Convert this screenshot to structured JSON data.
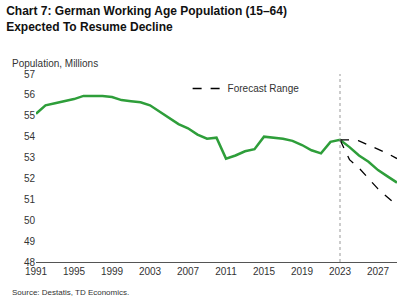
{
  "chart_data": {
    "type": "line",
    "title": "Chart 7: German Working Age Population (15–64)\nExpected To Resume Decline",
    "y_label": "Population, Millions",
    "source": "Source: Destatis, TD Economics.",
    "x": [
      1991,
      1992,
      1993,
      1994,
      1995,
      1996,
      1997,
      1998,
      1999,
      2000,
      2001,
      2002,
      2003,
      2004,
      2005,
      2006,
      2007,
      2008,
      2009,
      2010,
      2011,
      2012,
      2013,
      2014,
      2015,
      2016,
      2017,
      2018,
      2019,
      2020,
      2021,
      2022,
      2023,
      2024,
      2025,
      2026,
      2027,
      2028,
      2029
    ],
    "series": [
      {
        "color": "#2e9e3a",
        "line_style": "solid",
        "values": [
          55.1,
          55.5,
          55.6,
          55.7,
          55.8,
          55.95,
          55.95,
          55.95,
          55.9,
          55.75,
          55.7,
          55.65,
          55.5,
          55.2,
          54.9,
          54.6,
          54.4,
          54.1,
          53.9,
          53.95,
          52.95,
          53.1,
          53.3,
          53.4,
          54.0,
          53.95,
          53.9,
          53.8,
          53.6,
          53.35,
          53.2,
          53.75,
          53.85,
          53.5,
          53.1,
          52.8,
          52.4,
          52.1,
          51.8
        ]
      },
      {
        "name": "Forecast Range",
        "color": "#000000",
        "line_style": "dash",
        "values": [
          null,
          null,
          null,
          null,
          null,
          null,
          null,
          null,
          null,
          null,
          null,
          null,
          null,
          null,
          null,
          null,
          null,
          null,
          null,
          null,
          null,
          null,
          null,
          null,
          null,
          null,
          null,
          null,
          null,
          null,
          null,
          null,
          53.85,
          53.85,
          53.8,
          53.6,
          53.4,
          53.2,
          52.95
        ]
      },
      {
        "name": "Forecast Range",
        "color": "#000000",
        "line_style": "dash",
        "values": [
          null,
          null,
          null,
          null,
          null,
          null,
          null,
          null,
          null,
          null,
          null,
          null,
          null,
          null,
          null,
          null,
          null,
          null,
          null,
          null,
          null,
          null,
          null,
          null,
          null,
          null,
          null,
          null,
          null,
          null,
          null,
          null,
          53.85,
          52.9,
          52.5,
          52.0,
          51.5,
          51.1,
          50.7
        ]
      }
    ],
    "forecast_start": 2023,
    "xlim": [
      1991,
      2029
    ],
    "xticks": [
      1991,
      1995,
      1999,
      2003,
      2007,
      2011,
      2015,
      2019,
      2023,
      2027
    ],
    "ylim": [
      48,
      57
    ],
    "yticks": [
      48,
      49,
      50,
      51,
      52,
      53,
      54,
      55,
      56,
      57
    ],
    "grid": false,
    "legend": "top"
  }
}
